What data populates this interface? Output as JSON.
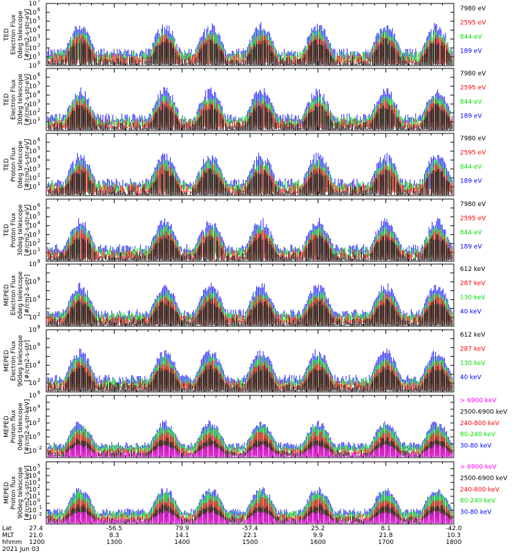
{
  "chart_data": {
    "type": "line",
    "date": "2021 Jun 03",
    "x_range": [
      "1200",
      "1800"
    ],
    "x_ticks": [
      "1300",
      "1400",
      "1500",
      "1600",
      "1700",
      "1800"
    ],
    "footer": {
      "row_labels": [
        "Lat",
        "MLT",
        "hhmm"
      ],
      "columns": [
        {
          "lat": "27.4",
          "mlt": "21.0",
          "hhmm": "1200"
        },
        {
          "lat": "-56.5",
          "mlt": "8.3",
          "hhmm": "1300"
        },
        {
          "lat": "79.9",
          "mlt": "14.1",
          "hhmm": "1400"
        },
        {
          "lat": "-57.4",
          "mlt": "22.1",
          "hhmm": "1500"
        },
        {
          "lat": "25.2",
          "mlt": "9.9",
          "hhmm": "1600"
        },
        {
          "lat": "8.1",
          "mlt": "21.8",
          "hhmm": "1700"
        },
        {
          "lat": "-42.0",
          "mlt": "10.3",
          "hhmm": "1800"
        }
      ]
    },
    "colors": {
      "blue": "#0000ff",
      "red": "#ff0000",
      "green": "#00e000",
      "black": "#000000",
      "magenta": "#ff00ff"
    },
    "panels": [
      {
        "ylabel": [
          "TED",
          "Electron Flux",
          "0deg telescope",
          "[#/cm2-s-str-eV]"
        ],
        "ylim_exp": [
          0,
          7
        ],
        "tick_exps": [
          0,
          1,
          2,
          3,
          4,
          5,
          6,
          7
        ],
        "legend": [
          {
            "text": "7980 eV",
            "color": "black"
          },
          {
            "text": "2595 eV",
            "color": "red"
          },
          {
            "text": "844 eV",
            "color": "green"
          },
          {
            "text": "189 eV",
            "color": "blue"
          }
        ]
      },
      {
        "ylabel": [
          "TED",
          "Electron Flux",
          "30deg telescope",
          "[#/cm2-s-str-eV]"
        ],
        "ylim_exp": [
          0,
          7
        ],
        "tick_exps": [
          1,
          2,
          3,
          4,
          5,
          6
        ],
        "legend": [
          {
            "text": "7980 eV",
            "color": "black"
          },
          {
            "text": "2595 eV",
            "color": "red"
          },
          {
            "text": "844 eV",
            "color": "green"
          },
          {
            "text": "189 eV",
            "color": "blue"
          }
        ]
      },
      {
        "ylabel": [
          "TED",
          "Proton Flux",
          "0deg telescope",
          "[#/cm2-s-str-eV]"
        ],
        "ylim_exp": [
          0,
          7
        ],
        "tick_exps": [
          1,
          2,
          3,
          4,
          5,
          6
        ],
        "legend": [
          {
            "text": "7980 eV",
            "color": "black"
          },
          {
            "text": "2595 eV",
            "color": "red"
          },
          {
            "text": "844 eV",
            "color": "green"
          },
          {
            "text": "189 eV",
            "color": "blue"
          }
        ]
      },
      {
        "ylabel": [
          "TED",
          "Proton Flux",
          "30deg telescope",
          "[#/cm2-s-str-eV]"
        ],
        "ylim_exp": [
          0,
          7
        ],
        "tick_exps": [
          1,
          2,
          3,
          4,
          5,
          6
        ],
        "legend": [
          {
            "text": "7980 eV",
            "color": "black"
          },
          {
            "text": "2595 eV",
            "color": "red"
          },
          {
            "text": "844 eV",
            "color": "green"
          },
          {
            "text": "189 eV",
            "color": "blue"
          }
        ]
      },
      {
        "ylabel": [
          "MEPED",
          "Electron Flux",
          "0deg telescope",
          "[#/cm2-s-str]"
        ],
        "ylim_exp": [
          1,
          8
        ],
        "tick_exps": [
          2,
          4,
          6,
          8
        ],
        "legend": [
          {
            "text": "612 keV",
            "color": "black"
          },
          {
            "text": "287 keV",
            "color": "red"
          },
          {
            "text": "130 keV",
            "color": "green"
          },
          {
            "text": "40 keV",
            "color": "blue"
          }
        ]
      },
      {
        "ylabel": [
          "MEPED",
          "Electron Flux",
          "90deg telescope",
          "[#/cm2-s-str]"
        ],
        "ylim_exp": [
          1,
          8
        ],
        "tick_exps": [
          2,
          4,
          6,
          8
        ],
        "legend": [
          {
            "text": "612 keV",
            "color": "black"
          },
          {
            "text": "287 keV",
            "color": "red"
          },
          {
            "text": "130 keV",
            "color": "green"
          },
          {
            "text": "40 keV",
            "color": "blue"
          }
        ]
      },
      {
        "ylabel": [
          "MEPED",
          "Proton flux",
          "0deg telescope",
          "[#/cm2-s-str-keV]"
        ],
        "ylim_exp": [
          -3,
          6
        ],
        "tick_exps": [
          -2,
          0,
          2,
          4,
          6
        ],
        "legend": [
          {
            "text": "> 6900 keV",
            "color": "magenta"
          },
          {
            "text": "2500-6900 keV",
            "color": "black"
          },
          {
            "text": "240-800 keV",
            "color": "red"
          },
          {
            "text": "80-240 keV",
            "color": "green"
          },
          {
            "text": "30-80 keV",
            "color": "blue"
          }
        ]
      },
      {
        "ylabel": [
          "MEPED",
          "Proton flux",
          "90deg telescope",
          "[#/cm2-s-str-keV]"
        ],
        "ylim_exp": [
          -3,
          6
        ],
        "tick_exps": [
          -2,
          -1,
          0,
          1,
          2,
          3,
          4,
          5
        ],
        "legend": [
          {
            "text": "> 6900 keV",
            "color": "magenta"
          },
          {
            "text": "2500-6900 keV",
            "color": "black"
          },
          {
            "text": "240-800 keV",
            "color": "red"
          },
          {
            "text": "80-240 keV",
            "color": "green"
          },
          {
            "text": "30-80 keV",
            "color": "blue"
          }
        ]
      }
    ],
    "events_hhmm": [
      1230,
      1345,
      1425,
      1510,
      1600,
      1700,
      1745
    ]
  }
}
